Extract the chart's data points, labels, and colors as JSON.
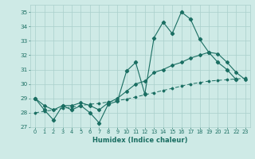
{
  "xlabel": "Humidex (Indice chaleur)",
  "bg_color": "#ceeae6",
  "grid_color": "#aacfcb",
  "line_color": "#1a6e62",
  "xlim": [
    -0.5,
    23.5
  ],
  "ylim": [
    27,
    35.5
  ],
  "xticks": [
    0,
    1,
    2,
    3,
    4,
    5,
    6,
    7,
    8,
    9,
    10,
    11,
    12,
    13,
    14,
    15,
    16,
    17,
    18,
    19,
    20,
    21,
    22,
    23
  ],
  "yticks": [
    27,
    28,
    29,
    30,
    31,
    32,
    33,
    34,
    35
  ],
  "series1": [
    29.0,
    28.2,
    27.5,
    28.5,
    28.2,
    28.5,
    28.0,
    27.3,
    28.6,
    28.8,
    30.9,
    31.5,
    29.3,
    33.2,
    34.3,
    33.5,
    35.0,
    34.5,
    33.1,
    32.2,
    31.5,
    31.0,
    30.3,
    null
  ],
  "series2": [
    29.0,
    28.5,
    28.2,
    28.5,
    28.5,
    28.7,
    28.5,
    28.2,
    28.7,
    29.0,
    29.5,
    30.0,
    30.2,
    30.8,
    31.0,
    31.3,
    31.5,
    31.8,
    32.0,
    32.2,
    32.1,
    31.5,
    30.8,
    30.3
  ],
  "series_linear": [
    28.0,
    28.1,
    28.2,
    28.3,
    28.4,
    28.5,
    28.6,
    28.65,
    28.75,
    28.85,
    28.95,
    29.1,
    29.25,
    29.4,
    29.55,
    29.7,
    29.85,
    30.0,
    30.1,
    30.2,
    30.25,
    30.3,
    30.35,
    30.4
  ]
}
